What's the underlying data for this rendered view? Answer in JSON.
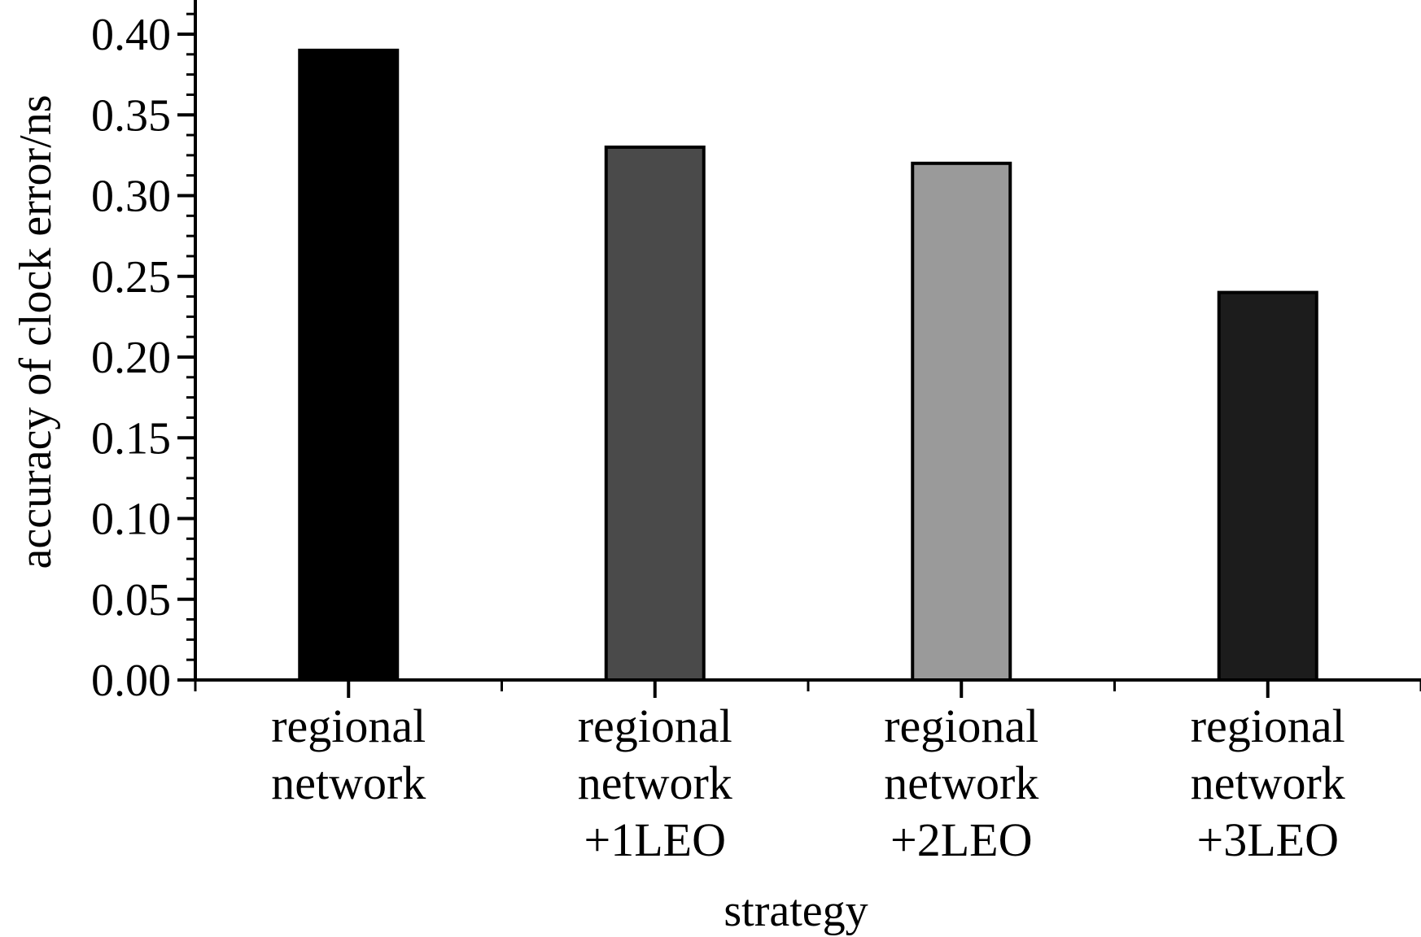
{
  "chart_data": {
    "type": "bar",
    "categories": [
      [
        "regional",
        "network"
      ],
      [
        "regional",
        "network",
        "+1LEO"
      ],
      [
        "regional",
        "network",
        "+2LEO"
      ],
      [
        "regional",
        "network",
        "+3LEO"
      ]
    ],
    "values": [
      0.39,
      0.33,
      0.32,
      0.24
    ],
    "bar_colors": [
      "#000000",
      "#4a4a4a",
      "#9a9a9a",
      "#1c1c1c"
    ],
    "xlabel": "strategy",
    "ylabel": "accuracy of clock error/ns",
    "ylim": [
      0,
      0.4
    ],
    "yticks": [
      "0.00",
      "0.05",
      "0.10",
      "0.15",
      "0.20",
      "0.25",
      "0.30",
      "0.35",
      "0.40"
    ],
    "grid": false,
    "legend": "none"
  }
}
